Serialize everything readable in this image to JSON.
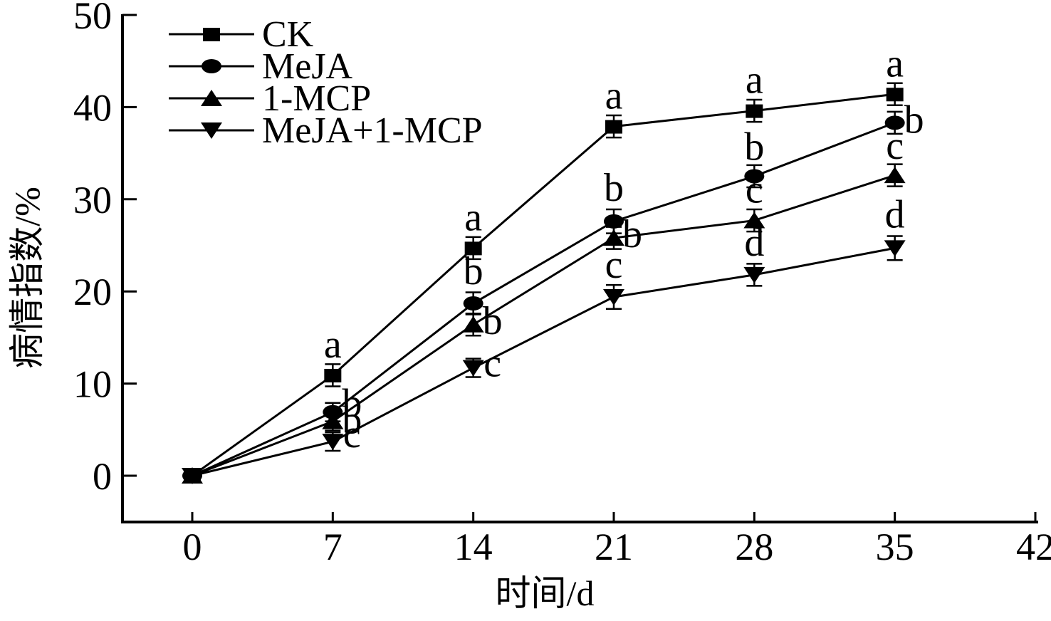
{
  "figure": {
    "background": "#ffffff",
    "ink": "#000000"
  },
  "chart_data": {
    "type": "line",
    "title": "",
    "xlabel": "时间/d",
    "ylabel": "病情指数/%",
    "x": [
      0,
      7,
      14,
      21,
      28,
      35
    ],
    "xticks": [
      "0",
      "7",
      "14",
      "21",
      "28",
      "35",
      "42"
    ],
    "xtick_values": [
      0,
      7,
      14,
      21,
      28,
      35,
      42
    ],
    "yticks": [
      "0",
      "10",
      "20",
      "30",
      "40",
      "50"
    ],
    "ytick_values": [
      0,
      10,
      20,
      30,
      40,
      50
    ],
    "xlim": [
      -3.5,
      42
    ],
    "ylim": [
      -5,
      50
    ],
    "grid": false,
    "legend_position": "top-left-inside",
    "series": [
      {
        "name": "CK",
        "marker": "square",
        "values": [
          0,
          10.9,
          24.7,
          37.9,
          39.6,
          41.4
        ],
        "errors": [
          0.4,
          1.2,
          1.2,
          1.2,
          1.2,
          1.2
        ],
        "letters": [
          null,
          "a",
          "a",
          "a",
          "a",
          "a"
        ],
        "letter_offsets": [
          null,
          [
            0,
            -25
          ],
          [
            0,
            -25
          ],
          [
            0,
            -25
          ],
          [
            0,
            -25
          ],
          [
            0,
            -25
          ]
        ]
      },
      {
        "name": "MeJA",
        "marker": "circle",
        "values": [
          0,
          6.9,
          18.7,
          27.6,
          32.5,
          38.3
        ],
        "errors": [
          0.4,
          1.0,
          1.2,
          1.3,
          1.2,
          1.2
        ],
        "letters": [
          null,
          "b",
          "b",
          "b",
          "b",
          "b"
        ],
        "letter_offsets": [
          null,
          [
            27,
            6
          ],
          [
            0,
            -27
          ],
          [
            0,
            -29
          ],
          [
            0,
            -23
          ],
          [
            27,
            14
          ]
        ]
      },
      {
        "name": "1-MCP",
        "marker": "triangle-up",
        "values": [
          0,
          5.9,
          16.4,
          25.8,
          27.7,
          32.6
        ],
        "errors": [
          0.4,
          1.0,
          1.2,
          1.2,
          1.2,
          1.2
        ],
        "letters": [
          null,
          "b",
          "b",
          "b",
          "c",
          "c"
        ],
        "letter_offsets": [
          null,
          [
            27,
            17
          ],
          [
            27,
            13
          ],
          [
            26,
            13
          ],
          [
            0,
            -25
          ],
          [
            0,
            -23
          ]
        ]
      },
      {
        "name": "MeJA+1-MCP",
        "marker": "triangle-down",
        "values": [
          0,
          3.7,
          11.7,
          19.4,
          21.8,
          24.7
        ],
        "errors": [
          0.4,
          1.0,
          1.0,
          1.3,
          1.2,
          1.3
        ],
        "letters": [
          null,
          "c",
          "c",
          "c",
          "d",
          "d"
        ],
        "letter_offsets": [
          null,
          [
            27,
            8
          ],
          [
            27,
            12
          ],
          [
            0,
            -27
          ],
          [
            0,
            -27
          ],
          [
            0,
            -29
          ]
        ]
      }
    ]
  }
}
